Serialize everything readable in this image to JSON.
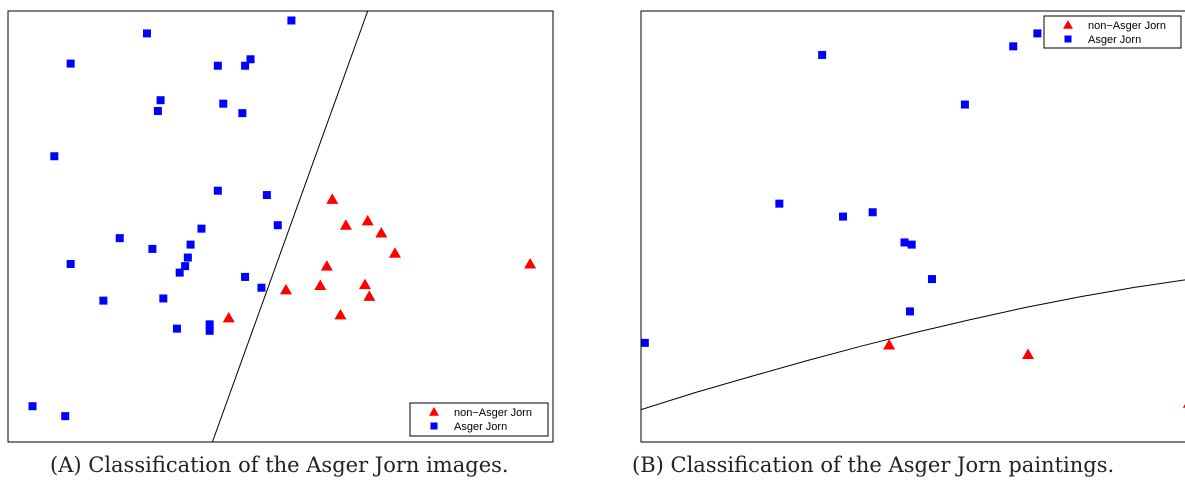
{
  "chart_data": [
    {
      "type": "scatter",
      "caption_label": "(A)",
      "caption_text": "Classification of the Asger Jorn images.",
      "xlim": [
        0,
        100
      ],
      "ylim": [
        0,
        100
      ],
      "grid": false,
      "ticks": false,
      "legend_position": "bottom-right",
      "series": [
        {
          "name": "non−Asger Jorn",
          "marker": "triangle",
          "color": "#ff0000",
          "points": [
            [
              59.5,
              56.3
            ],
            [
              62,
              50.3
            ],
            [
              66,
              51.3
            ],
            [
              68.5,
              48.5
            ],
            [
              71,
              43.8
            ],
            [
              58.5,
              40.8
            ],
            [
              65.5,
              36.5
            ],
            [
              51,
              35.3
            ],
            [
              57.3,
              36.3
            ],
            [
              66.3,
              33.8
            ],
            [
              61,
              29.5
            ],
            [
              40.5,
              28.8
            ],
            [
              95.8,
              41.3
            ]
          ]
        },
        {
          "name": "Asger Jorn",
          "marker": "square",
          "color": "#0000ff",
          "points": [
            [
              52,
              97.8
            ],
            [
              25.5,
              94.8
            ],
            [
              11.5,
              87.8
            ],
            [
              38.5,
              87.3
            ],
            [
              43.5,
              87.3
            ],
            [
              44.5,
              88.8
            ],
            [
              28,
              79.3
            ],
            [
              27.5,
              76.8
            ],
            [
              39.5,
              78.5
            ],
            [
              43,
              76.3
            ],
            [
              8.5,
              66.3
            ],
            [
              38.5,
              58.3
            ],
            [
              47.5,
              57.3
            ],
            [
              49.5,
              50.3
            ],
            [
              35.5,
              49.5
            ],
            [
              20.5,
              47.3
            ],
            [
              26.5,
              44.8
            ],
            [
              33.5,
              45.8
            ],
            [
              33,
              42.8
            ],
            [
              11.5,
              41.3
            ],
            [
              32.5,
              40.8
            ],
            [
              31.5,
              39.3
            ],
            [
              43.5,
              38.3
            ],
            [
              46.5,
              35.8
            ],
            [
              17.5,
              32.8
            ],
            [
              28.5,
              33.3
            ],
            [
              37,
              27.3
            ],
            [
              31,
              26.3
            ],
            [
              37,
              25.8
            ],
            [
              4.5,
              8.3
            ],
            [
              10.5,
              6.0
            ]
          ]
        }
      ],
      "boundary": {
        "type": "line",
        "points": [
          [
            66,
            100
          ],
          [
            37.5,
            0
          ]
        ]
      }
    },
    {
      "type": "scatter",
      "caption_label": "(B)",
      "caption_text": "Classification of the Asger Jorn paintings.",
      "xlim": [
        0,
        100
      ],
      "ylim": [
        0,
        100
      ],
      "grid": false,
      "ticks": false,
      "legend_position": "top-right",
      "series": [
        {
          "name": "non−Asger Jorn",
          "marker": "triangle",
          "color": "#ff0000",
          "points": [
            [
              45.2,
              22.5
            ],
            [
              70.5,
              20.3
            ],
            [
              99.8,
              9.0
            ]
          ]
        },
        {
          "name": "Asger Jorn",
          "marker": "square",
          "color": "#0000ff",
          "points": [
            [
              33,
              89.8
            ],
            [
              67.8,
              91.8
            ],
            [
              72.2,
              94.8
            ],
            [
              59,
              78.3
            ],
            [
              25.2,
              55.3
            ],
            [
              36.8,
              52.3
            ],
            [
              42.2,
              53.3
            ],
            [
              48,
              46.3
            ],
            [
              49.3,
              45.8
            ],
            [
              53,
              37.8
            ],
            [
              49,
              30.3
            ],
            [
              0.7,
              23.0
            ]
          ]
        }
      ],
      "boundary": {
        "type": "curve",
        "points": [
          [
            0,
            7.5
          ],
          [
            10,
            11.5
          ],
          [
            20,
            15.2
          ],
          [
            30,
            18.8
          ],
          [
            40,
            22.2
          ],
          [
            50,
            25.4
          ],
          [
            60,
            28.4
          ],
          [
            70,
            31.2
          ],
          [
            80,
            33.7
          ],
          [
            90,
            35.9
          ],
          [
            100,
            37.8
          ]
        ]
      }
    }
  ]
}
